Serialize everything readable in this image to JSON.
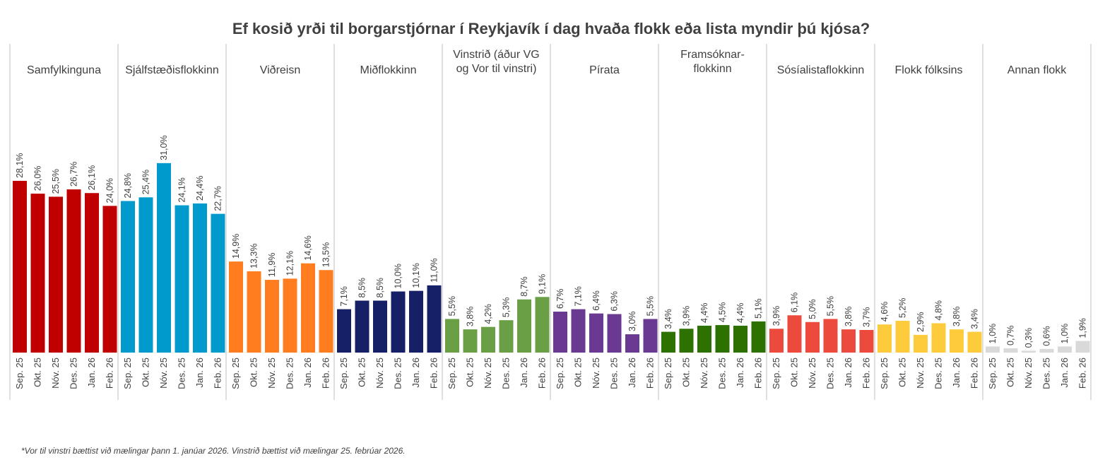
{
  "chart_data": {
    "type": "bar",
    "title": "Ef kosið yrði til borgarstjórnar í Reykjavík í dag hvaða flokk eða lista myndir þú kjósa?",
    "xlabel": "",
    "ylabel": "",
    "ylim": [
      0,
      33
    ],
    "grid": false,
    "legend": "none",
    "categories": [
      "Sep. 25",
      "Okt. 25",
      "Nóv. 25",
      "Des. 25",
      "Jan. 26",
      "Feb. 26"
    ],
    "series": [
      {
        "name": "Samfylkinguna",
        "label_lines": [
          "Samfylkinguna"
        ],
        "color": "#C00000",
        "values": [
          28.1,
          26.0,
          25.5,
          26.7,
          26.1,
          24.0
        ],
        "labels": [
          "28,1%",
          "26,0%",
          "25,5%",
          "26,7%",
          "26,1%",
          "24,0%"
        ]
      },
      {
        "name": "Sjálfstæðisflokkinn",
        "label_lines": [
          "Sjálfstæðisflokkinn"
        ],
        "color": "#009BCC",
        "values": [
          24.8,
          25.4,
          31.0,
          24.1,
          24.4,
          22.7
        ],
        "labels": [
          "24,8%",
          "25,4%",
          "31,0%",
          "24,1%",
          "24,4%",
          "22,7%"
        ]
      },
      {
        "name": "Viðreisn",
        "label_lines": [
          "Viðreisn"
        ],
        "color": "#FF7D1E",
        "values": [
          14.9,
          13.3,
          11.9,
          12.1,
          14.6,
          13.5
        ],
        "labels": [
          "14,9%",
          "13,3%",
          "11,9%",
          "12,1%",
          "14,6%",
          "13,5%"
        ]
      },
      {
        "name": "Miðflokkinn",
        "label_lines": [
          "Miðflokkinn"
        ],
        "color": "#152066",
        "values": [
          7.1,
          8.5,
          8.5,
          10.0,
          10.1,
          11.0
        ],
        "labels": [
          "7,1%",
          "8,5%",
          "8,5%",
          "10,0%",
          "10,1%",
          "11,0%"
        ]
      },
      {
        "name": "Vinstrið (áður VG og Vor til vinstri)",
        "label_lines": [
          "Vinstrið (áður VG",
          "og Vor til vinstri)"
        ],
        "color": "#6A9F45",
        "values": [
          5.5,
          3.8,
          4.2,
          5.3,
          8.7,
          9.1
        ],
        "labels": [
          "5,5%",
          "3,8%",
          "4,2%",
          "5,3%",
          "8,7%",
          "9,1%"
        ]
      },
      {
        "name": "Pírata",
        "label_lines": [
          "Pírata"
        ],
        "color": "#6A3A92",
        "values": [
          6.7,
          7.1,
          6.4,
          6.3,
          3.0,
          5.5
        ],
        "labels": [
          "6,7%",
          "7,1%",
          "6,4%",
          "6,3%",
          "3,0%",
          "5,5%"
        ]
      },
      {
        "name": "Framsóknarflokkinn",
        "label_lines": [
          "Framsóknar-",
          "flokkinn"
        ],
        "color": "#2D7200",
        "values": [
          3.4,
          3.9,
          4.4,
          4.5,
          4.4,
          5.1
        ],
        "labels": [
          "3,4%",
          "3,9%",
          "4,4%",
          "4,5%",
          "4,4%",
          "5,1%"
        ]
      },
      {
        "name": "Sósíalistaflokkinn",
        "label_lines": [
          "Sósíalistaflokkinn"
        ],
        "color": "#EC4A3C",
        "values": [
          3.9,
          6.1,
          5.0,
          5.5,
          3.8,
          3.7
        ],
        "labels": [
          "3,9%",
          "6,1%",
          "5,0%",
          "5,5%",
          "3,8%",
          "3,7%"
        ]
      },
      {
        "name": "Flokk fólksins",
        "label_lines": [
          "Flokk fólksins"
        ],
        "color": "#FECB3D",
        "values": [
          4.6,
          5.2,
          2.9,
          4.8,
          3.8,
          3.4
        ],
        "labels": [
          "4,6%",
          "5,2%",
          "2,9%",
          "4,8%",
          "3,8%",
          "3,4%"
        ]
      },
      {
        "name": "Annan flokk",
        "label_lines": [
          "Annan flokk"
        ],
        "color": "#D9D9D9",
        "values": [
          1.0,
          0.7,
          0.3,
          0.6,
          1.0,
          1.9
        ],
        "labels": [
          "1,0%",
          "0,7%",
          "0,3%",
          "0,6%",
          "1,0%",
          "1,9%"
        ]
      }
    ],
    "footnote": "*Vor til vinstri bættist við mælingar þann 1. janúar 2026. Vinstrið bættist við mælingar 25. febrúar 2026."
  }
}
